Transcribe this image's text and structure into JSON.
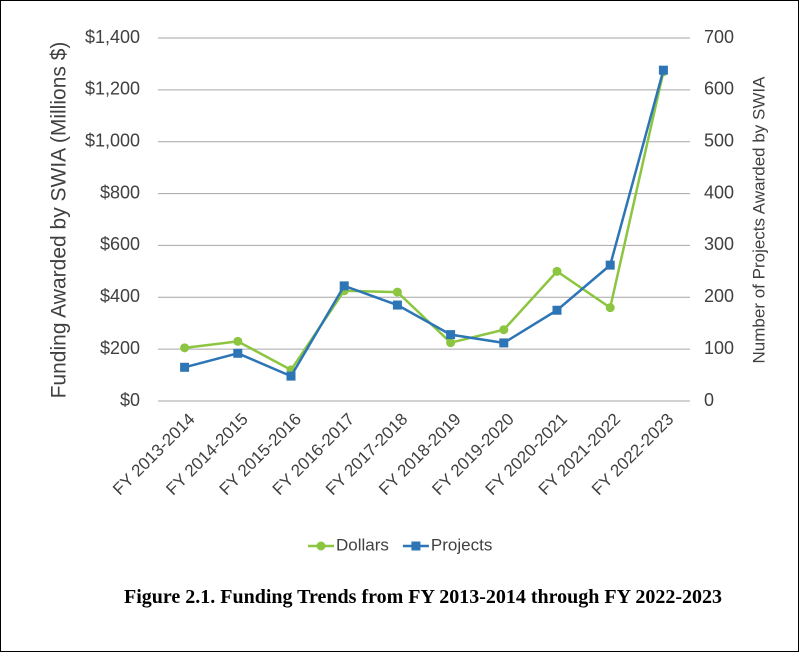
{
  "chart_data": {
    "type": "line",
    "categories": [
      "FY 2013-2014",
      "FY 2014-2015",
      "FY 2015-2016",
      "FY 2016-2017",
      "FY 2017-2018",
      "FY 2018-2019",
      "FY 2019-2020",
      "FY 2020-2021",
      "FY 2021-2022",
      "FY 2022-2023"
    ],
    "series": [
      {
        "name": "Dollars",
        "color": "#8cc540",
        "marker": "circle",
        "values": [
          205,
          230,
          120,
          425,
          420,
          225,
          275,
          500,
          360,
          1270
        ]
      },
      {
        "name": "Projects",
        "color": "#2e75b6",
        "marker": "square",
        "axis": "y2",
        "values": [
          65,
          92,
          48,
          222,
          185,
          128,
          112,
          175,
          262,
          638
        ]
      }
    ],
    "y_label": "Funding Awarded by SWIA (Millions $)",
    "y2_label": "Number of Projects Awarded by SWIA",
    "ylim": [
      0,
      1400
    ],
    "yticks": [
      {
        "value": 0,
        "label": "$0"
      },
      {
        "value": 200,
        "label": "$200"
      },
      {
        "value": 400,
        "label": "$400"
      },
      {
        "value": 600,
        "label": "$600"
      },
      {
        "value": 800,
        "label": "$800"
      },
      {
        "value": 1000,
        "label": "$1,000"
      },
      {
        "value": 1200,
        "label": "$1,200"
      },
      {
        "value": 1400,
        "label": "$1,400"
      }
    ],
    "y2lim": [
      0,
      700
    ],
    "y2ticks": [
      0,
      100,
      200,
      300,
      400,
      500,
      600,
      700
    ],
    "grid": true,
    "legend": "bottom",
    "caption": "Figure 2.1. Funding Trends from FY 2013-2014 through FY 2022-2023"
  }
}
